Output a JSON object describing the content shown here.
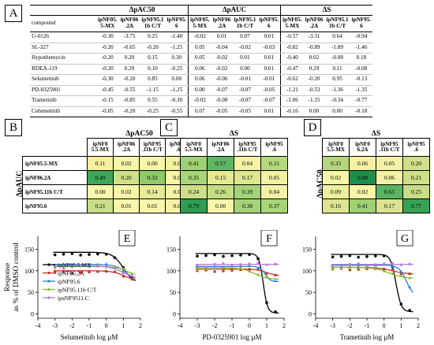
{
  "panels": {
    "A": "A",
    "B": "B",
    "C": "C",
    "D": "D",
    "E": "E",
    "F": "F",
    "G": "G"
  },
  "tableA": {
    "groups": [
      "ΔpAC50",
      "ΔpAUC",
      "ΔS"
    ],
    "compound_header": "compound",
    "subcols": [
      "ipNF05.\n5-MX",
      "ipNF06\n.2A",
      "ipNF95.1\n1b C/T",
      "ipNF95.\n6"
    ],
    "rows": [
      {
        "name": "U-0126",
        "v": [
          "-0.30",
          "-3.75",
          "0.25",
          "-1.40",
          "-0.02",
          "0.01",
          "0.07",
          "0.01",
          "-0.57",
          "-3.31",
          "0.64",
          "-0.94"
        ]
      },
      {
        "name": "SL-327",
        "v": [
          "-0.20",
          "-0.65",
          "-0.20",
          "-1.25",
          "0.05",
          "-0.04",
          "-0.02",
          "-0.03",
          "-0.82",
          "-0.89",
          "-1.89",
          "-1.46"
        ]
      },
      {
        "name": "Hypothemycin",
        "v": [
          "-0.20",
          "0.20",
          "0.15",
          "0.30",
          "0.05",
          "-0.02",
          "0.01",
          "0.01",
          "-0.40",
          "0.02",
          "-0.08",
          "0.18"
        ]
      },
      {
        "name": "RDEA-119",
        "v": [
          "-0.20",
          "0.20",
          "0.10",
          "-0.25",
          "0.06",
          "-0.02",
          "0.00",
          "0.01",
          "-0.47",
          "0.29",
          "0.11",
          "-0.08"
        ]
      },
      {
        "name": "Selumetinib",
        "v": [
          "-0.30",
          "-0.20",
          "0.85",
          "0.00",
          "0.06",
          "-0.06",
          "-0.01",
          "-0.01",
          "-0.62",
          "-0.20",
          "0.95",
          "-0.13"
        ]
      },
      {
        "name": "PD-0325901",
        "v": [
          "-0.45",
          "-0.55",
          "-1.15",
          "-1.25",
          "0.00",
          "-0.07",
          "-0.07",
          "-0.05",
          "-1.21",
          "-0.53",
          "-1.36",
          "-1.35"
        ]
      },
      {
        "name": "Trametinib",
        "v": [
          "-0.15",
          "-0.85",
          "0.55",
          "-0.30",
          "-0.02",
          "-0.08",
          "-0.07",
          "-0.07",
          "-1.06",
          "-1.15",
          "-0.34",
          "-0.77"
        ]
      },
      {
        "name": "Cobimetinib",
        "v": [
          "-0.05",
          "-0.20",
          "-0.25",
          "-0.55",
          "0.07",
          "-0.05",
          "-0.05",
          "0.01",
          "-0.16",
          "0.00",
          "0.00",
          "-0.18"
        ]
      }
    ]
  },
  "heatB": {
    "title": "ΔpAC50",
    "side": "ΔpAUC",
    "cols": [
      "ipNF0\n5.5-MX",
      "ipNF06\n.2A",
      "ipNF95\n.11b C/T",
      "ipNF95\n.6"
    ],
    "rows": [
      {
        "name": "ipNF05.5-MX",
        "v": [
          "0.11",
          "0.02",
          "0.00",
          "0.06"
        ]
      },
      {
        "name": "ipNF06.2A",
        "v": [
          "0.49",
          "0.20",
          "0.33",
          "0.00"
        ]
      },
      {
        "name": "ipNF95.11b C/T",
        "v": [
          "0.00",
          "0.02",
          "0.14",
          "0.05"
        ]
      },
      {
        "name": "ipNF95.6",
        "v": [
          "0.21",
          "0.01",
          "0.01",
          "0.06"
        ]
      }
    ],
    "colors": [
      [
        "#f4f0a0",
        "#f7f5a8",
        "#f8f6aa",
        "#f6f2a4"
      ],
      [
        "#3fa65a",
        "#cfe08a",
        "#8ec96c",
        "#f8f6aa"
      ],
      [
        "#f8f6aa",
        "#f7f5a8",
        "#e8ea98",
        "#f6f3a6"
      ],
      [
        "#c7dd86",
        "#f8f6aa",
        "#f8f6aa",
        "#f6f2a4"
      ]
    ]
  },
  "heatC": {
    "title": "ΔS",
    "cols": [
      "ipNF0\n5.5-MX",
      "ipNF06\n.2A",
      "ipNF95\n.11b C/T",
      "ipNF95\n.6"
    ],
    "v": [
      [
        "0.41",
        "0.57",
        "0.04",
        "0.31"
      ],
      [
        "0.35",
        "0.15",
        "0.17",
        "0.05"
      ],
      [
        "0.24",
        "0.26",
        "0.39",
        "0.04"
      ],
      [
        "0.79",
        "0.00",
        "0.38",
        "0.37"
      ]
    ],
    "colors": [
      [
        "#9ed173",
        "#5fb664",
        "#f5f2a6",
        "#b6d87c"
      ],
      [
        "#a8d578",
        "#e5e994",
        "#dfe690",
        "#f3f1a4"
      ],
      [
        "#cbdf88",
        "#c4dc84",
        "#a4d377",
        "#f5f2a6"
      ],
      [
        "#2e9c52",
        "#f8f6aa",
        "#a4d377",
        "#a8d578"
      ]
    ]
  },
  "heatD": {
    "title": "ΔS",
    "side": "ΔpAC50",
    "cols": [
      "ipNF0\n5.5-MX",
      "ipNF0\n6.2A",
      "ipNF95\n.11b C/T",
      "ipNF95\n.6"
    ],
    "v": [
      [
        "0.33",
        "0.06",
        "0.05",
        "0.20"
      ],
      [
        "0.02",
        "0.98",
        "0.06",
        "0.21"
      ],
      [
        "0.09",
        "0.02",
        "0.65",
        "0.25"
      ],
      [
        "0.16",
        "0.41",
        "0.17",
        "0.77"
      ]
    ],
    "colors": [
      [
        "#b4d77b",
        "#f4f1a4",
        "#f5f2a6",
        "#d0e08a"
      ],
      [
        "#f7f5a8",
        "#1d8f4a",
        "#f4f1a4",
        "#cde089"
      ],
      [
        "#f0ef9f",
        "#f7f5a8",
        "#59b463",
        "#c6dc85"
      ],
      [
        "#dde58f",
        "#9fd174",
        "#dae48e",
        "#36a256"
      ]
    ]
  },
  "curves": {
    "ylabel": "Response\nas % of DMSO control",
    "yticks": [
      "0",
      "50",
      "100",
      "150"
    ],
    "xticks": [
      "-4",
      "-3",
      "-2",
      "-1",
      "0",
      "1",
      "2"
    ],
    "legend": [
      "ipNF05.5 MX",
      "ipNF06.2A",
      "ipNF95.6",
      "ipNF95.11b C/T",
      "ipsNF9511.C"
    ],
    "colors": [
      "#000000",
      "#c0392b",
      "#2f7ed8",
      "#8db82b",
      "#b07cd8"
    ],
    "plots": [
      {
        "xlabel": "Selumetinib log µM"
      },
      {
        "xlabel": "PD-0325901 log µM"
      },
      {
        "xlabel": "Trametinib log µM"
      }
    ]
  }
}
